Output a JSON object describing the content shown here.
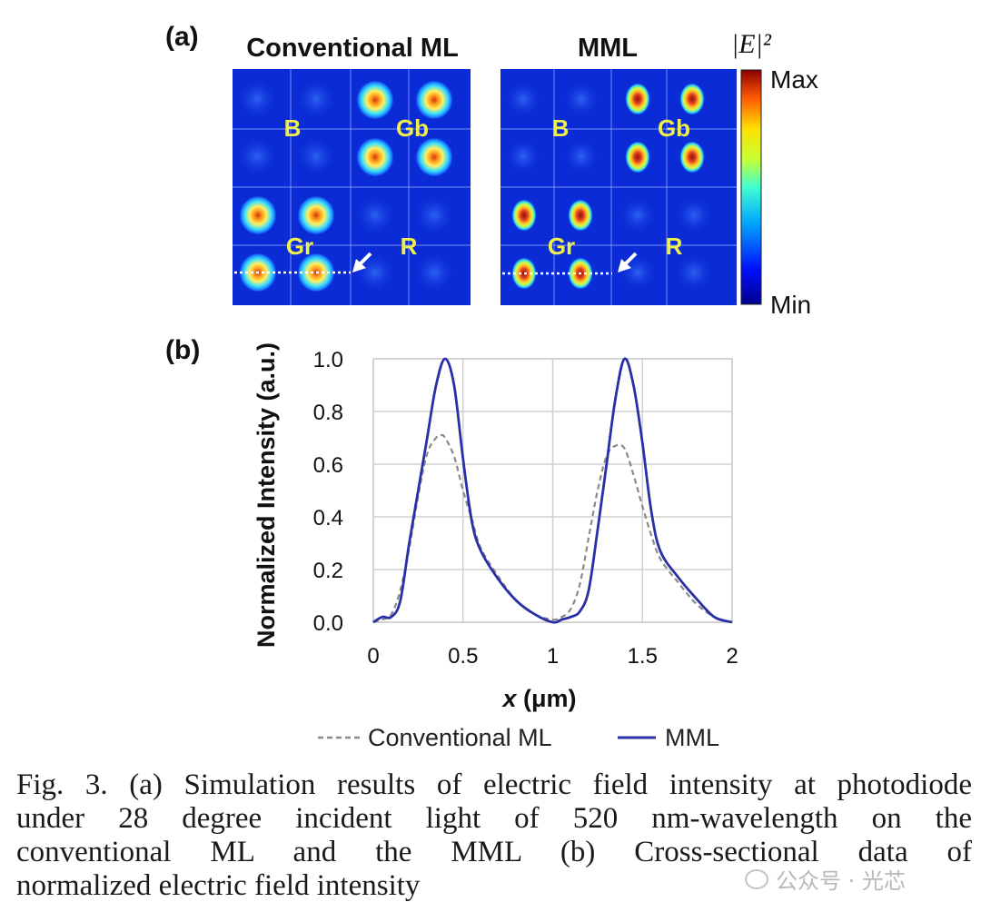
{
  "panel_a": {
    "label": "(a)",
    "left_title": "Conventional ML",
    "right_title": "MML",
    "colorbar_title": "|E|²",
    "colorbar_max": "Max",
    "colorbar_min": "Min",
    "pixel_labels": {
      "b": "B",
      "gb": "Gb",
      "gr": "Gr",
      "r": "R"
    }
  },
  "panel_b": {
    "label": "(b)",
    "legend_conventional": "Conventional ML",
    "legend_mml": "MML"
  },
  "chart_data": {
    "type": "line",
    "xlabel": "x (μm)",
    "ylabel": "Normalized Intensity (a.u.)",
    "xlim": [
      0,
      2
    ],
    "ylim": [
      0,
      1.0
    ],
    "xticks": [
      "0",
      "0.5",
      "1",
      "1.5",
      "2"
    ],
    "yticks": [
      "0.0",
      "0.2",
      "0.4",
      "0.6",
      "0.8",
      "1.0"
    ],
    "grid": true,
    "legend": "bottom",
    "series": [
      {
        "name": "Conventional ML",
        "style": "dashed",
        "color": "#8a8a8a",
        "x": [
          0,
          0.05,
          0.1,
          0.15,
          0.2,
          0.25,
          0.3,
          0.35,
          0.38,
          0.4,
          0.45,
          0.5,
          0.55,
          0.6,
          0.7,
          0.8,
          0.9,
          1.0,
          1.05,
          1.1,
          1.15,
          1.2,
          1.25,
          1.3,
          1.35,
          1.4,
          1.45,
          1.5,
          1.55,
          1.6,
          1.7,
          1.8,
          1.9,
          2.0
        ],
        "y": [
          0.0,
          0.01,
          0.03,
          0.12,
          0.28,
          0.48,
          0.64,
          0.7,
          0.71,
          0.7,
          0.63,
          0.5,
          0.39,
          0.28,
          0.17,
          0.08,
          0.03,
          0.01,
          0.02,
          0.05,
          0.14,
          0.32,
          0.5,
          0.63,
          0.67,
          0.66,
          0.56,
          0.44,
          0.33,
          0.24,
          0.15,
          0.07,
          0.02,
          0.0
        ]
      },
      {
        "name": "MML",
        "style": "solid",
        "color": "#2b2fa6",
        "x": [
          0,
          0.05,
          0.1,
          0.15,
          0.2,
          0.25,
          0.3,
          0.35,
          0.4,
          0.45,
          0.5,
          0.55,
          0.6,
          0.7,
          0.8,
          0.9,
          1.0,
          1.05,
          1.1,
          1.15,
          1.2,
          1.25,
          1.3,
          1.35,
          1.4,
          1.45,
          1.5,
          1.55,
          1.6,
          1.7,
          1.8,
          1.9,
          2.0
        ],
        "y": [
          0.0,
          0.02,
          0.02,
          0.08,
          0.3,
          0.5,
          0.7,
          0.9,
          1.0,
          0.9,
          0.62,
          0.38,
          0.27,
          0.16,
          0.08,
          0.03,
          0.0,
          0.01,
          0.02,
          0.04,
          0.12,
          0.35,
          0.6,
          0.85,
          1.0,
          0.9,
          0.68,
          0.42,
          0.27,
          0.17,
          0.09,
          0.02,
          0.0
        ]
      }
    ]
  },
  "caption": {
    "line1": "Fig. 3.  (a) Simulation results of electric field intensity at photodiode",
    "line2": "under 28 degree incident light of 520 nm-wavelength on the",
    "line3": "conventional ML and the MML (b) Cross-sectional data of",
    "line4": "normalized electric field intensity"
  },
  "watermark": "公众号 · 光芯"
}
